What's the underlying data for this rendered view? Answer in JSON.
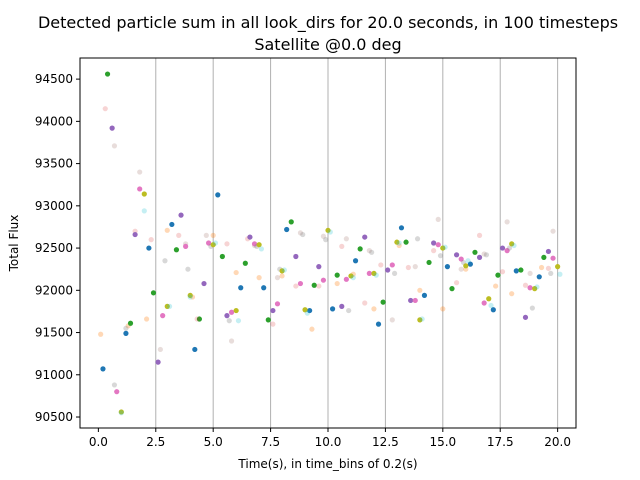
{
  "chart_data": {
    "type": "scatter",
    "title": "Detected particle sum in all look_dirs for 20.0 seconds, in 100 timesteps",
    "subtitle": "Satellite @0.0 deg",
    "xlabel": "Time(s), in time_bins of 0.2(s)",
    "ylabel": "Total Flux",
    "xlim": [
      -0.8,
      20.8
    ],
    "ylim": [
      90370,
      94750
    ],
    "xticks": [
      0,
      2.5,
      5,
      7.5,
      10,
      12.5,
      15,
      17.5,
      20
    ],
    "xtick_labels": [
      "0.0",
      "2.5",
      "5.0",
      "7.5",
      "10.0",
      "12.5",
      "15.0",
      "17.5",
      "20.0"
    ],
    "yticks": [
      90500,
      91000,
      91500,
      92000,
      92500,
      93000,
      93500,
      94000,
      94500
    ],
    "ytick_labels": [
      "90500",
      "91000",
      "91500",
      "92000",
      "92500",
      "93000",
      "93500",
      "94000",
      "94500"
    ],
    "vertical_grid": [
      2.5,
      5,
      7.5,
      10,
      12.5,
      15,
      17.5,
      20
    ],
    "grid_color": "#b0b0b0",
    "colors": [
      "#1f77b4",
      "#ff7f0e",
      "#2ca02c",
      "#d62728",
      "#9467bd",
      "#8c564b",
      "#e377c2",
      "#7f7f7f",
      "#bcbd22",
      "#17becf"
    ],
    "series": [
      {
        "color": "#1f77b4",
        "alpha": 1,
        "x": [
          0.2,
          1.2,
          2.2,
          3.2,
          4.2,
          5.2,
          6.2,
          7.2,
          8.2,
          9.2,
          10.2,
          11.2,
          12.2,
          13.2,
          14.2,
          15.2,
          16.2,
          17.2,
          18.2,
          19.2
        ],
        "y": [
          91070,
          91490,
          92500,
          92780,
          91300,
          93130,
          92030,
          92030,
          92720,
          91760,
          91780,
          92350,
          91600,
          92740,
          91940,
          92280,
          92310,
          91770,
          92230,
          92160
        ]
      },
      {
        "color": "#ff7f0e",
        "alpha": 0.3,
        "x": [
          0.1,
          1.3,
          2.1,
          3.0,
          4.1,
          5.0,
          6.0,
          7.0,
          8.0,
          9.3,
          10.4,
          11.1,
          12.0,
          13.1,
          14.0,
          15.0,
          16.0,
          17.3,
          18.0,
          19.3
        ],
        "y": [
          91480,
          91580,
          91660,
          92710,
          91920,
          92650,
          92210,
          92150,
          92170,
          91540,
          92080,
          92190,
          91780,
          92530,
          92000,
          91780,
          92250,
          92050,
          91960,
          92270
        ]
      },
      {
        "color": "#2ca02c",
        "alpha": 1,
        "x": [
          0.4,
          1.4,
          2.4,
          3.4,
          4.4,
          5.4,
          6.4,
          7.4,
          8.4,
          9.4,
          10.4,
          11.4,
          12.4,
          13.4,
          14.4,
          15.4,
          16.4,
          17.4,
          18.4,
          19.4
        ],
        "y": [
          94560,
          91610,
          91970,
          92480,
          91660,
          92400,
          92320,
          91650,
          92810,
          92060,
          92180,
          92490,
          91860,
          92570,
          92330,
          92020,
          92450,
          92180,
          92240,
          92390
        ]
      },
      {
        "color": "#d62728",
        "alpha": 0.2,
        "x": [
          0.3,
          1.6,
          2.3,
          3.5,
          4.3,
          5.6,
          6.5,
          7.6,
          8.6,
          9.6,
          10.6,
          11.6,
          12.3,
          13.5,
          14.6,
          15.6,
          16.6,
          17.6,
          18.6,
          19.6
        ],
        "y": [
          94150,
          92700,
          92600,
          92650,
          91660,
          92550,
          92610,
          91600,
          92050,
          92050,
          92520,
          91850,
          92300,
          92270,
          92470,
          92090,
          92650,
          92220,
          92060,
          92260
        ]
      },
      {
        "color": "#9467bd",
        "alpha": 1,
        "x": [
          0.6,
          1.6,
          2.6,
          3.6,
          4.6,
          5.6,
          6.6,
          7.6,
          8.6,
          9.6,
          10.6,
          11.6,
          12.6,
          13.6,
          14.6,
          15.6,
          16.6,
          17.6,
          18.6,
          19.6
        ],
        "y": [
          93920,
          92660,
          91150,
          92890,
          92080,
          91700,
          92630,
          91760,
          92400,
          92280,
          91810,
          92630,
          92240,
          91880,
          92560,
          92420,
          92390,
          92500,
          91680,
          92460
        ]
      },
      {
        "color": "#8c564b",
        "alpha": 0.2,
        "x": [
          0.7,
          1.8,
          2.7,
          3.8,
          4.7,
          5.8,
          6.8,
          7.8,
          8.8,
          9.8,
          10.8,
          11.8,
          12.8,
          13.8,
          14.8,
          15.8,
          16.8,
          17.8,
          18.8,
          19.8
        ],
        "y": [
          93710,
          93400,
          91300,
          92550,
          92650,
          91400,
          92530,
          92150,
          92680,
          92640,
          92610,
          92470,
          91650,
          92280,
          92840,
          92250,
          92430,
          92810,
          92200,
          92700
        ]
      },
      {
        "color": "#e377c2",
        "alpha": 1,
        "x": [
          0.8,
          1.8,
          2.8,
          3.8,
          4.8,
          5.8,
          6.8,
          7.8,
          8.8,
          9.8,
          10.8,
          11.8,
          12.8,
          13.8,
          14.8,
          15.8,
          16.8,
          17.8,
          18.8,
          19.8
        ],
        "y": [
          90800,
          93200,
          91700,
          92520,
          92560,
          91740,
          92550,
          91840,
          92080,
          92120,
          92130,
          92200,
          92300,
          91880,
          92540,
          92370,
          91850,
          92470,
          92030,
          92380
        ]
      },
      {
        "color": "#7f7f7f",
        "alpha": 0.3,
        "x": [
          0.7,
          1.2,
          2.9,
          3.9,
          4.9,
          5.7,
          6.9,
          7.9,
          8.9,
          9.9,
          10.9,
          11.9,
          12.9,
          13.9,
          14.9,
          15.9,
          16.9,
          17.9,
          18.9,
          19.7
        ],
        "y": [
          90880,
          91550,
          92350,
          92250,
          92520,
          91640,
          92520,
          92250,
          92660,
          92600,
          91760,
          92450,
          92200,
          92610,
          92410,
          92330,
          92420,
          92500,
          91790,
          92200
        ]
      },
      {
        "color": "#bcbd22",
        "alpha": 1,
        "x": [
          1.0,
          2.0,
          3.0,
          4.0,
          5.0,
          6.0,
          7.0,
          8.0,
          9.0,
          10.0,
          11.0,
          12.0,
          13.0,
          14.0,
          15.0,
          16.0,
          17.0,
          18.0,
          19.0,
          20.0
        ],
        "y": [
          90560,
          93140,
          91810,
          91940,
          92540,
          91760,
          92540,
          92230,
          91770,
          92710,
          92170,
          92200,
          92570,
          91650,
          92500,
          92290,
          91900,
          92550,
          92020,
          92280
        ]
      },
      {
        "color": "#17becf",
        "alpha": 0.25,
        "x": [
          1.0,
          2.0,
          3.1,
          4.0,
          5.1,
          6.1,
          7.1,
          8.1,
          9.1,
          10.1,
          11.1,
          12.1,
          13.1,
          14.1,
          15.1,
          16.1,
          17.1,
          18.1,
          19.1,
          20.1
        ],
        "y": [
          90550,
          92940,
          91810,
          91920,
          92560,
          91640,
          92490,
          92240,
          91730,
          92690,
          92150,
          92180,
          92560,
          91660,
          92510,
          92350,
          91820,
          92530,
          92040,
          92190
        ]
      }
    ]
  }
}
